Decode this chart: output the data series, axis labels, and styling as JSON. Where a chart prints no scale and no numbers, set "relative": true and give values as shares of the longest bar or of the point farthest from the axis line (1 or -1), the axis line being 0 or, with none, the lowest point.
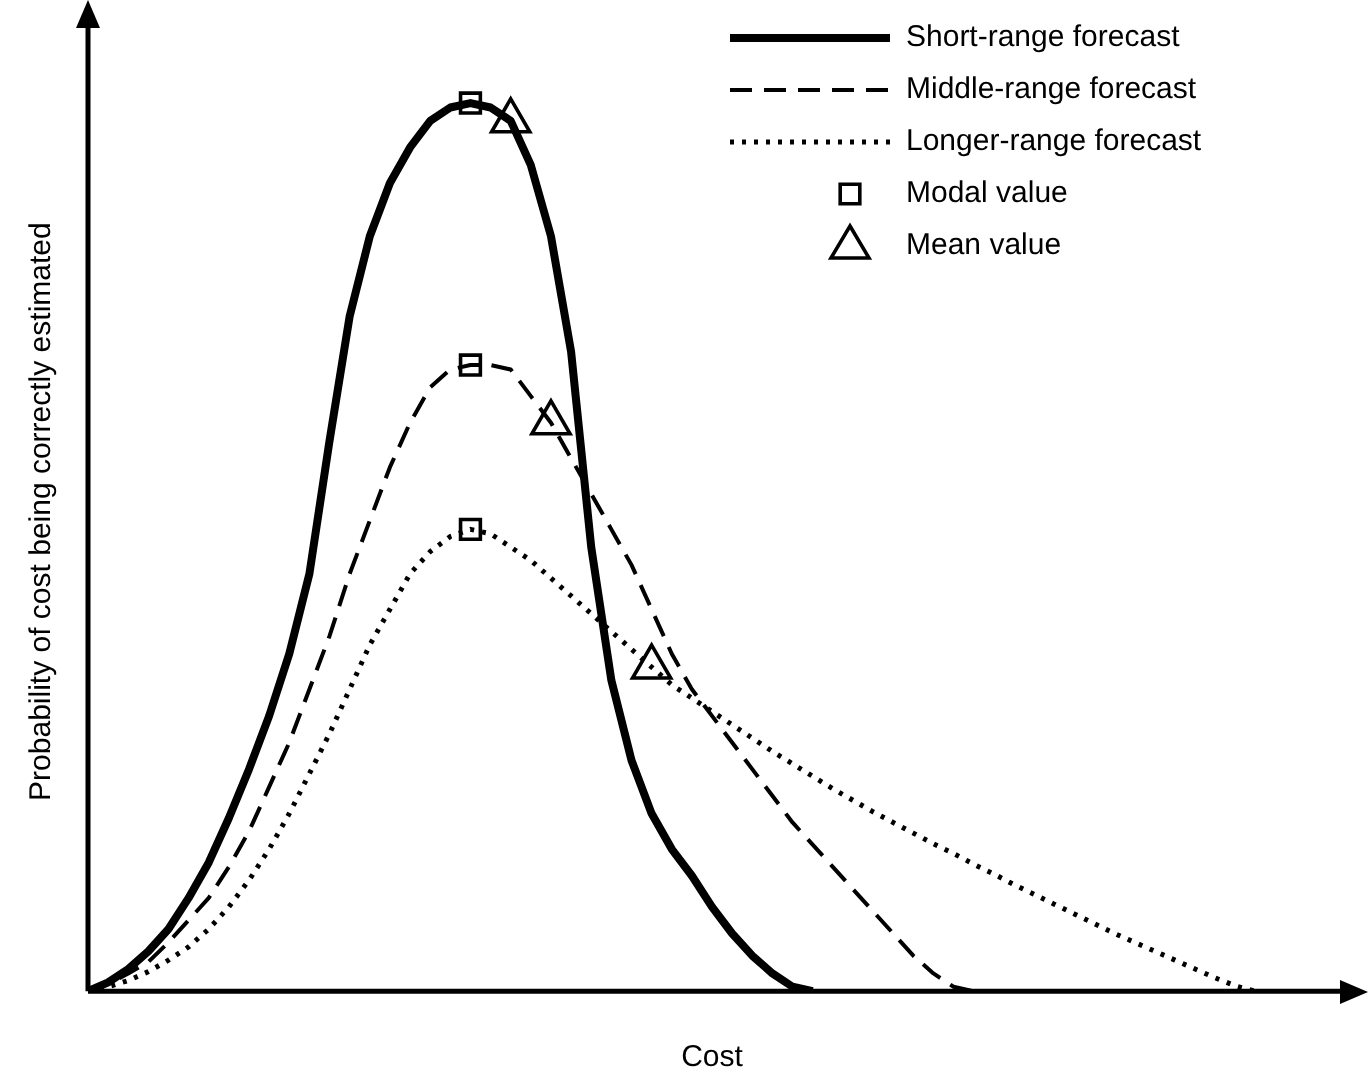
{
  "chart_data": {
    "type": "line",
    "relative": true,
    "xlabel": "Cost",
    "ylabel": "Probability of cost being correctly estimated",
    "legend": "top right",
    "grid": false,
    "categories": [
      null,
      null,
      null,
      null,
      null,
      null,
      null,
      null,
      null,
      null,
      null,
      null,
      null,
      null,
      null,
      null,
      null,
      null,
      null,
      null,
      null,
      null,
      null,
      null,
      null,
      null,
      null,
      null,
      null,
      null,
      null,
      null,
      null,
      null,
      null,
      null,
      null,
      null,
      null,
      null,
      null,
      null,
      null,
      null,
      null,
      null,
      null,
      null,
      null,
      null,
      null,
      null,
      null,
      null,
      null,
      null,
      null,
      null,
      null,
      null,
      null,
      null,
      null
    ],
    "series": [
      {
        "name": "Short-range forecast",
        "color": "#000000",
        "line_style": "solid",
        "marker": "none",
        "values": [
          0,
          0.01,
          0.025,
          0.045,
          0.07,
          0.105,
          0.145,
          0.195,
          0.25,
          0.31,
          0.38,
          0.47,
          0.62,
          0.76,
          0.85,
          0.91,
          0.95,
          0.98,
          0.995,
          1,
          0.995,
          0.98,
          0.93,
          0.85,
          0.72,
          0.5,
          0.35,
          0.26,
          0.2,
          0.16,
          0.13,
          0.095,
          0.065,
          0.04,
          0.02,
          0.005,
          0,
          null,
          null,
          null,
          null,
          null,
          null,
          null,
          null,
          null,
          null,
          null,
          null,
          null,
          null,
          null,
          null,
          null,
          null,
          null,
          null,
          null,
          null,
          null,
          null,
          null,
          null
        ]
      },
      {
        "name": "Middle-range forecast",
        "color": "#000000",
        "line_style": "dashed",
        "marker": "none",
        "values": [
          0,
          0.008,
          0.02,
          0.033,
          0.055,
          0.08,
          0.105,
          0.14,
          0.18,
          0.23,
          0.28,
          0.34,
          0.4,
          0.47,
          0.53,
          0.59,
          0.64,
          0.68,
          0.7,
          0.705,
          0.705,
          0.7,
          0.67,
          0.64,
          0.6,
          0.56,
          0.52,
          0.48,
          0.43,
          0.38,
          0.34,
          0.31,
          0.28,
          0.25,
          0.22,
          0.19,
          0.165,
          0.14,
          0.115,
          0.09,
          0.065,
          0.04,
          0.02,
          0.005,
          0,
          null,
          null,
          null,
          null,
          null,
          null,
          null,
          null,
          null,
          null,
          null,
          null,
          null,
          null,
          null,
          null,
          null,
          null
        ]
      },
      {
        "name": "Longer-range forecast",
        "color": "#000000",
        "line_style": "dotted",
        "marker": "none",
        "values": [
          0,
          0.005,
          0.012,
          0.022,
          0.035,
          0.05,
          0.07,
          0.095,
          0.125,
          0.16,
          0.2,
          0.245,
          0.29,
          0.34,
          0.39,
          0.43,
          0.47,
          0.495,
          0.512,
          0.52,
          0.515,
          0.5,
          0.485,
          0.465,
          0.445,
          0.425,
          0.405,
          0.385,
          0.365,
          0.345,
          0.33,
          0.315,
          0.3,
          0.285,
          0.27,
          0.256,
          0.242,
          0.228,
          0.215,
          0.202,
          0.19,
          0.178,
          0.166,
          0.155,
          0.143,
          0.132,
          0.12,
          0.109,
          0.098,
          0.087,
          0.076,
          0.065,
          0.055,
          0.045,
          0.035,
          0.025,
          0.015,
          0.006,
          0,
          null,
          null,
          null,
          null
        ]
      },
      {
        "name": "Modal value",
        "type": "line",
        "line_style": "none",
        "color": "#000000",
        "marker": "square",
        "values": [
          null,
          null,
          null,
          null,
          null,
          null,
          null,
          null,
          null,
          null,
          null,
          null,
          null,
          null,
          null,
          null,
          null,
          null,
          null,
          1,
          null,
          null,
          null,
          null,
          null,
          null,
          null,
          null,
          null,
          null,
          null,
          null,
          null,
          null,
          null,
          null,
          null,
          null,
          null,
          null,
          null,
          null,
          null,
          null,
          null,
          null,
          null,
          null,
          null,
          null,
          null,
          null,
          null,
          null,
          null,
          null,
          null,
          null,
          null,
          null,
          null,
          null,
          null
        ]
      },
      {
        "type": "line",
        "line_style": "none",
        "color": "#000000",
        "marker": "square",
        "values": [
          null,
          null,
          null,
          null,
          null,
          null,
          null,
          null,
          null,
          null,
          null,
          null,
          null,
          null,
          null,
          null,
          null,
          null,
          null,
          0.705,
          null,
          null,
          null,
          null,
          null,
          null,
          null,
          null,
          null,
          null,
          null,
          null,
          null,
          null,
          null,
          null,
          null,
          null,
          null,
          null,
          null,
          null,
          null,
          null,
          null,
          null,
          null,
          null,
          null,
          null,
          null,
          null,
          null,
          null,
          null,
          null,
          null,
          null,
          null,
          null,
          null,
          null,
          null
        ]
      },
      {
        "type": "line",
        "line_style": "none",
        "color": "#000000",
        "marker": "square",
        "values": [
          null,
          null,
          null,
          null,
          null,
          null,
          null,
          null,
          null,
          null,
          null,
          null,
          null,
          null,
          null,
          null,
          null,
          null,
          null,
          0.52,
          null,
          null,
          null,
          null,
          null,
          null,
          null,
          null,
          null,
          null,
          null,
          null,
          null,
          null,
          null,
          null,
          null,
          null,
          null,
          null,
          null,
          null,
          null,
          null,
          null,
          null,
          null,
          null,
          null,
          null,
          null,
          null,
          null,
          null,
          null,
          null,
          null,
          null,
          null,
          null,
          null,
          null,
          null
        ]
      },
      {
        "name": "Mean value",
        "type": "line",
        "line_style": "none",
        "color": "#000000",
        "marker": "triangle",
        "values": [
          null,
          null,
          null,
          null,
          null,
          null,
          null,
          null,
          null,
          null,
          null,
          null,
          null,
          null,
          null,
          null,
          null,
          null,
          null,
          null,
          null,
          0.98,
          null,
          null,
          null,
          null,
          null,
          null,
          null,
          null,
          null,
          null,
          null,
          null,
          null,
          null,
          null,
          null,
          null,
          null,
          null,
          null,
          null,
          null,
          null,
          null,
          null,
          null,
          null,
          null,
          null,
          null,
          null,
          null,
          null,
          null,
          null,
          null,
          null,
          null,
          null,
          null,
          null
        ]
      },
      {
        "type": "line",
        "line_style": "none",
        "color": "#000000",
        "marker": "triangle",
        "values": [
          null,
          null,
          null,
          null,
          null,
          null,
          null,
          null,
          null,
          null,
          null,
          null,
          null,
          null,
          null,
          null,
          null,
          null,
          null,
          null,
          null,
          null,
          null,
          0.64,
          null,
          null,
          null,
          null,
          null,
          null,
          null,
          null,
          null,
          null,
          null,
          null,
          null,
          null,
          null,
          null,
          null,
          null,
          null,
          null,
          null,
          null,
          null,
          null,
          null,
          null,
          null,
          null,
          null,
          null,
          null,
          null,
          null,
          null,
          null,
          null,
          null,
          null,
          null
        ]
      },
      {
        "type": "line",
        "line_style": "none",
        "color": "#000000",
        "marker": "triangle",
        "values": [
          null,
          null,
          null,
          null,
          null,
          null,
          null,
          null,
          null,
          null,
          null,
          null,
          null,
          null,
          null,
          null,
          null,
          null,
          null,
          null,
          null,
          null,
          null,
          null,
          null,
          null,
          null,
          null,
          0.365,
          null,
          null,
          null,
          null,
          null,
          null,
          null,
          null,
          null,
          null,
          null,
          null,
          null,
          null,
          null,
          null,
          null,
          null,
          null,
          null,
          null,
          null,
          null,
          null,
          null,
          null,
          null,
          null,
          null,
          null,
          null,
          null,
          null,
          null
        ]
      }
    ]
  }
}
